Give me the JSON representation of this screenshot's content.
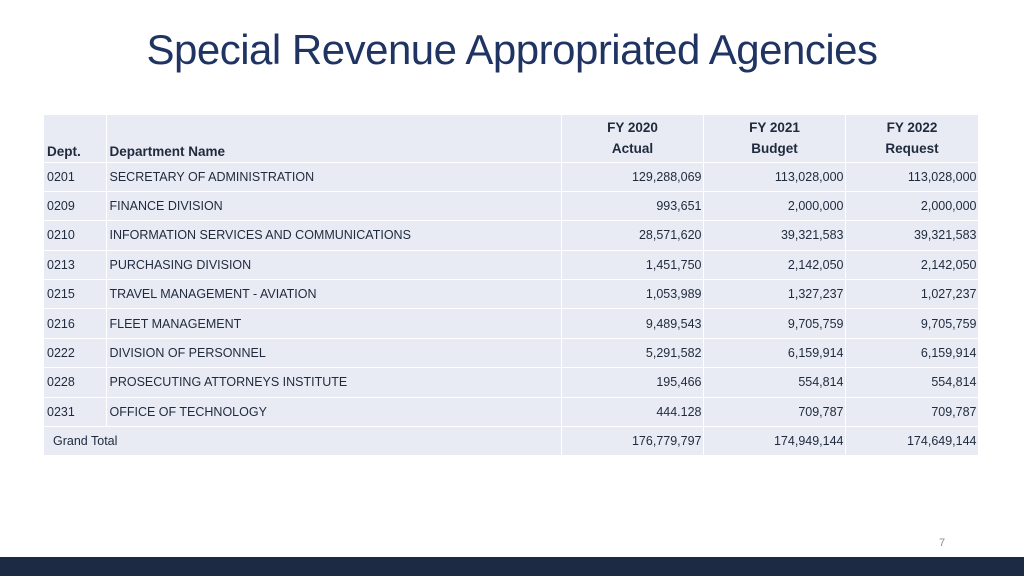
{
  "slide": {
    "title": "Special Revenue Appropriated Agencies",
    "page_number": "7"
  },
  "table": {
    "headers": {
      "dept": "Dept.",
      "name": "Department Name",
      "fy2020": [
        "FY 2020",
        "Actual"
      ],
      "fy2021": [
        "FY 2021",
        "Budget"
      ],
      "fy2022": [
        "FY 2022",
        "Request"
      ]
    },
    "rows": [
      {
        "dept": "0201",
        "name": "SECRETARY OF ADMINISTRATION",
        "fy2020": "129,288,069",
        "fy2021": "113,028,000",
        "fy2022": "113,028,000"
      },
      {
        "dept": "0209",
        "name": "FINANCE DIVISION",
        "fy2020": "993,651",
        "fy2021": "2,000,000",
        "fy2022": "2,000,000"
      },
      {
        "dept": "0210",
        "name": "INFORMATION SERVICES AND COMMUNICATIONS",
        "fy2020": "28,571,620",
        "fy2021": "39,321,583",
        "fy2022": "39,321,583"
      },
      {
        "dept": "0213",
        "name": "PURCHASING DIVISION",
        "fy2020": "1,451,750",
        "fy2021": "2,142,050",
        "fy2022": "2,142,050"
      },
      {
        "dept": "0215",
        "name": "TRAVEL MANAGEMENT - AVIATION",
        "fy2020": "1,053,989",
        "fy2021": "1,327,237",
        "fy2022": "1,027,237"
      },
      {
        "dept": "0216",
        "name": "FLEET MANAGEMENT",
        "fy2020": "9,489,543",
        "fy2021": "9,705,759",
        "fy2022": "9,705,759"
      },
      {
        "dept": "0222",
        "name": "DIVISION OF PERSONNEL",
        "fy2020": "5,291,582",
        "fy2021": "6,159,914",
        "fy2022": "6,159,914"
      },
      {
        "dept": "0228",
        "name": "PROSECUTING ATTORNEYS INSTITUTE",
        "fy2020": "195,466",
        "fy2021": "554,814",
        "fy2022": "554,814"
      },
      {
        "dept": "0231",
        "name": "OFFICE OF TECHNOLOGY",
        "fy2020": "444.128",
        "fy2021": "709,787",
        "fy2022": "709,787"
      }
    ],
    "total": {
      "label": "Grand Total",
      "fy2020": "176,779,797",
      "fy2021": "174,949,144",
      "fy2022": "174,649,144"
    }
  },
  "colors": {
    "title": "#1f3462",
    "row_fill": "#e8ebf4",
    "footer_bar": "#1c2a44"
  }
}
